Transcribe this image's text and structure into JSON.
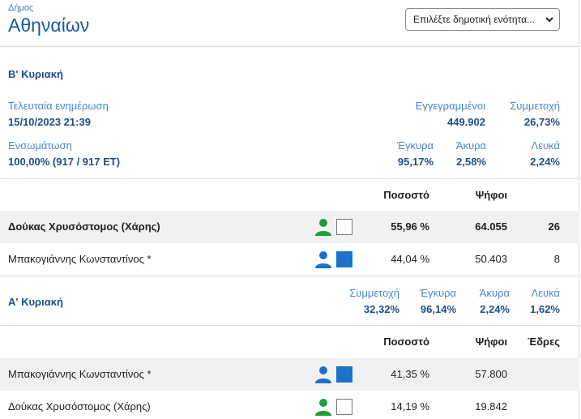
{
  "header": {
    "dimos_label": "Δήμος",
    "dimos_name": "Αθηναίων",
    "unit_select": {
      "selected": "Επιλέξτε δημοτική ενότητα..."
    }
  },
  "round_b": {
    "title": "Β' Κυριακή",
    "last_update_label": "Τελευταία ενημέρωση",
    "last_update_value": "15/10/2023 21:39",
    "registered_label": "Εγγεγραμμένοι",
    "registered_value": "449.902",
    "turnout_label": "Συμμετοχή",
    "turnout_value": "26,73%",
    "integration_label": "Ενσωμάτωση",
    "integration_value": "100,00% (917 / 917 ΕΤ)",
    "valid_label": "Έγκυρα",
    "valid_value": "95,17%",
    "invalid_label": "Άκυρα",
    "invalid_value": "2,58%",
    "blank_label": "Λευκά",
    "blank_value": "2,24%",
    "columns": {
      "percent": "Ποσοστό",
      "votes": "Ψήφοι"
    },
    "candidates": [
      {
        "name": "Δούκας Χρυσόστομος (Χάρης)",
        "percent": "55,96 %",
        "votes": "64.055",
        "seats": "26",
        "color": "#ffffff",
        "icon": "person-icon-green"
      },
      {
        "name": "Μπακογιάννης Κωνσταντίνος *",
        "percent": "44,04 %",
        "votes": "50.403",
        "seats": "8",
        "color": "#1a73c9",
        "icon": "person-icon-blue"
      }
    ]
  },
  "round_a": {
    "title": "Α' Κυριακή",
    "turnout_label": "Συμμετοχή",
    "turnout_value": "32,32%",
    "valid_label": "Έγκυρα",
    "valid_value": "96,14%",
    "invalid_label": "Άκυρα",
    "invalid_value": "2,24%",
    "blank_label": "Λευκά",
    "blank_value": "1,62%",
    "columns": {
      "percent": "Ποσοστό",
      "votes": "Ψήφοι",
      "seats": "Έδρες"
    },
    "candidates": [
      {
        "name": "Μπακογιάννης Κωνσταντίνος *",
        "percent": "41,35 %",
        "votes": "57.800",
        "color": "#1a73c9",
        "icon": "person-icon-blue"
      },
      {
        "name": "Δούκας Χρυσόστομος (Χάρης)",
        "percent": "14,19 %",
        "votes": "19.842",
        "color": "#ffffff",
        "icon": "person-icon-green"
      }
    ]
  },
  "colors": {
    "green_person": "#1e9e3a",
    "blue_person": "#1a73c9",
    "title_blue": "#1f4f86",
    "label_blue": "#4a86c8"
  }
}
